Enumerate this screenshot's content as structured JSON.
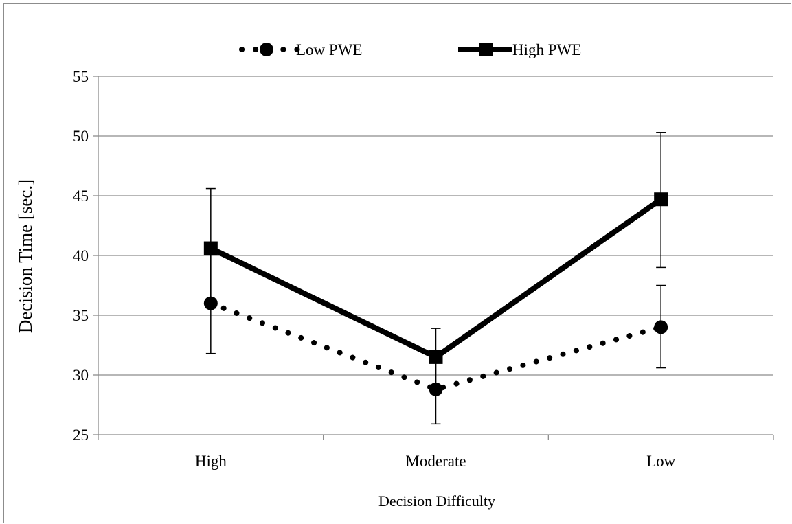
{
  "chart_data": {
    "type": "line",
    "title": "",
    "xlabel": "Decision Difficulty",
    "ylabel": "Decision Time [sec.]",
    "categories": [
      "High",
      "Moderate",
      "Low"
    ],
    "ylim": [
      25,
      55
    ],
    "yticks": [
      "25",
      "30",
      "35",
      "40",
      "45",
      "50",
      "55"
    ],
    "grid": true,
    "legend_position": "top",
    "series": [
      {
        "name": "Low PWE",
        "style": "dotted",
        "marker": "circle",
        "values": [
          36.0,
          28.8,
          34.0
        ],
        "error_low": [
          31.8,
          25.9,
          30.6
        ],
        "error_high": [
          40.4,
          31.7,
          37.5
        ]
      },
      {
        "name": "High PWE",
        "style": "solid",
        "marker": "square",
        "values": [
          40.6,
          31.5,
          44.7
        ],
        "error_low": [
          35.6,
          29.1,
          39.0
        ],
        "error_high": [
          45.6,
          33.9,
          50.3
        ]
      }
    ],
    "colors": {
      "line": "#000000",
      "grid": "#8c8c8c"
    }
  }
}
